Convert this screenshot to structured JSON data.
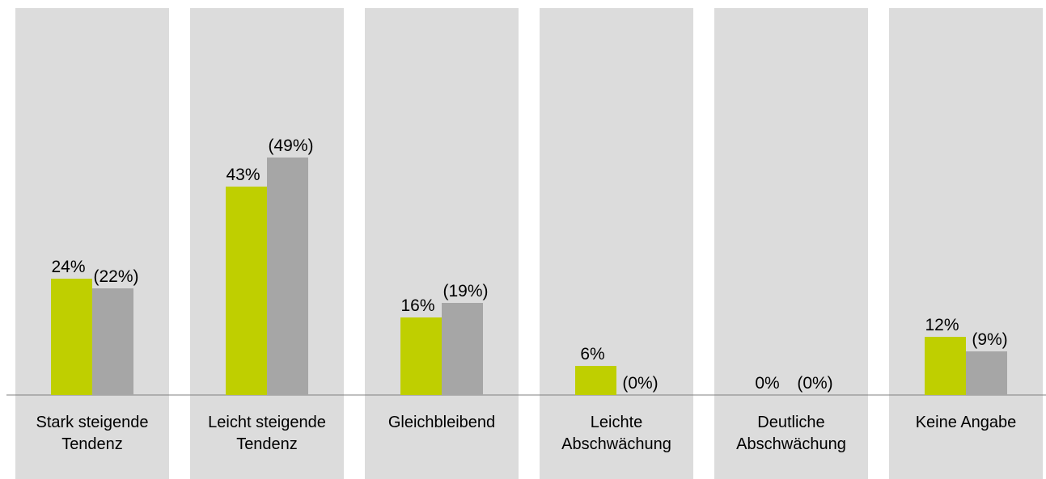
{
  "chart_data": {
    "type": "bar",
    "categories": [
      "Stark steigende Tendenz",
      "Leicht steigende Tendenz",
      "Gleichbleibend",
      "Leichte Abschwächung",
      "Deutliche Abschwächung",
      "Keine Angabe"
    ],
    "series": [
      {
        "color": "#bfcf00",
        "values": [
          24,
          43,
          16,
          6,
          0,
          12
        ],
        "value_labels": [
          "24%",
          "43%",
          "16%",
          "6%",
          "0%",
          "12%"
        ]
      },
      {
        "color": "#a6a6a6",
        "values": [
          22,
          49,
          19,
          0,
          0,
          9
        ],
        "value_labels": [
          "(22%)",
          "(49%)",
          "(19%)",
          "(0%)",
          "(0%)",
          "(9%)"
        ]
      }
    ],
    "ylim": [
      0,
      80
    ]
  }
}
